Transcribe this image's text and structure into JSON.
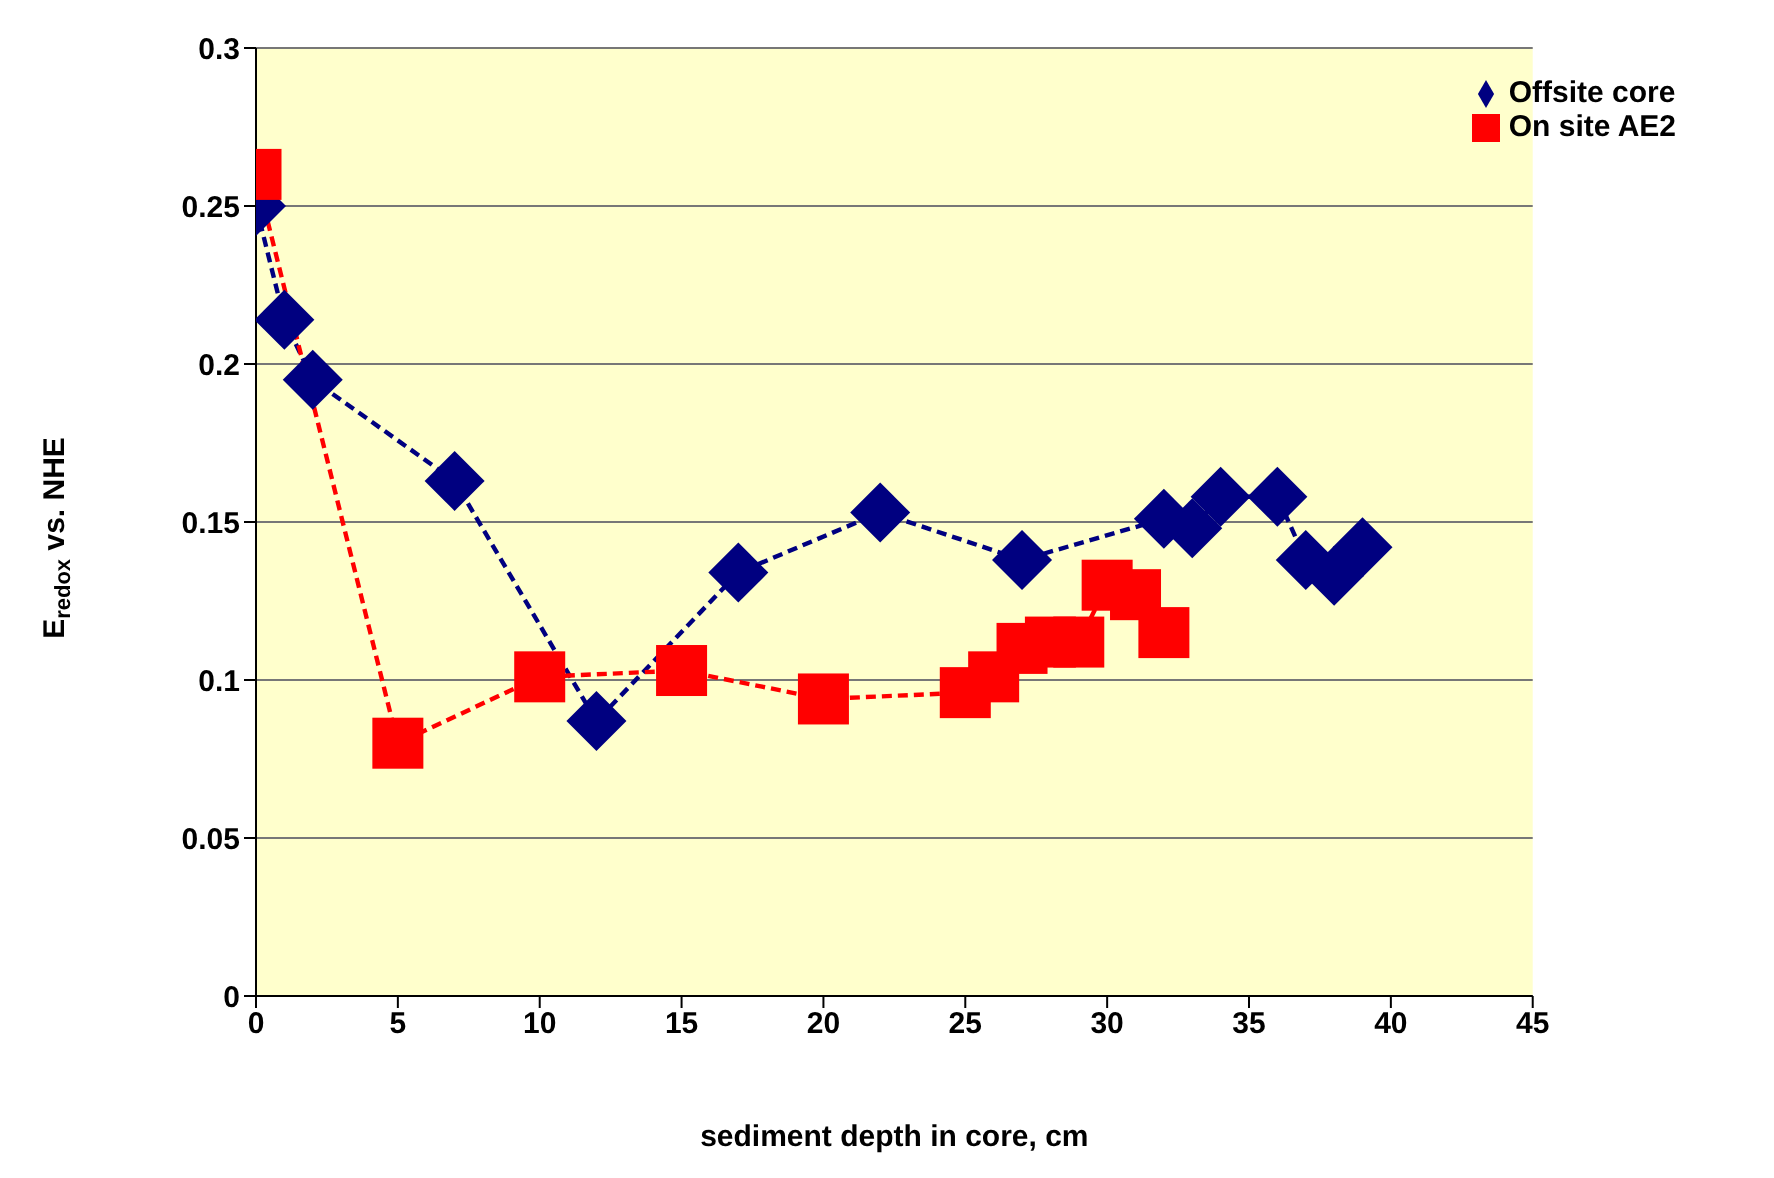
{
  "chart_data": {
    "type": "line",
    "xlabel": "sediment depth in core, cm",
    "ylabel": "E$_{redox}$ vs. NHE",
    "xlim": [
      0,
      45
    ],
    "xticks": [
      0,
      5,
      10,
      15,
      20,
      25,
      30,
      35,
      40,
      45
    ],
    "ylim": [
      0,
      0.3
    ],
    "yticks": [
      0,
      0.05,
      0.1,
      0.15,
      0.2,
      0.25,
      0.3
    ],
    "grid": "y",
    "legend": "top right",
    "series": [
      {
        "name": "Offsite core",
        "color": "#000080",
        "marker": "diamond",
        "line_style": "dashed",
        "x": [
          0,
          1,
          2,
          7,
          12,
          17,
          22,
          27,
          32,
          33,
          34,
          36,
          37,
          38,
          39
        ],
        "values": [
          0.25,
          0.214,
          0.195,
          0.163,
          0.087,
          0.134,
          0.153,
          0.138,
          0.151,
          0.148,
          0.158,
          0.158,
          0.138,
          0.133,
          0.142
        ]
      },
      {
        "name": "On site AE2",
        "color": "#ff0000",
        "marker": "square",
        "line_style": "dashed",
        "x": [
          0,
          5,
          10,
          15,
          20,
          25,
          26,
          27,
          28,
          29,
          30,
          31,
          32
        ],
        "values": [
          0.26,
          0.08,
          0.101,
          0.103,
          0.094,
          0.096,
          0.101,
          0.11,
          0.112,
          0.112,
          0.13,
          0.127,
          0.115
        ]
      }
    ]
  }
}
